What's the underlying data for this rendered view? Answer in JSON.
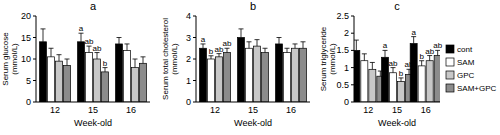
{
  "chart_data": [
    {
      "type": "bar",
      "title": "a",
      "y_label": "Serum glucose (mmol/L)",
      "x_label": "Week-old",
      "categories": [
        "12",
        "15",
        "16"
      ],
      "ylim": [
        0,
        20
      ],
      "yticks": [
        0,
        5,
        10,
        15,
        20
      ],
      "grid": false,
      "series": [
        {
          "color": "#000000",
          "values": [
            14,
            14,
            13.5
          ],
          "errors": [
            3,
            2,
            1.5
          ],
          "letters": [
            null,
            "a",
            null
          ]
        },
        {
          "color": "#ffffff",
          "values": [
            10.5,
            11.5,
            12
          ],
          "errors": [
            2,
            1.5,
            1.5
          ],
          "letters": [
            null,
            "ab",
            null
          ]
        },
        {
          "color": "#c8c8c8",
          "values": [
            9.5,
            10,
            8
          ],
          "errors": [
            1.5,
            1.5,
            2
          ],
          "letters": [
            null,
            "ab",
            null
          ]
        },
        {
          "color": "#8c8c8c",
          "values": [
            8.5,
            7,
            9
          ],
          "errors": [
            1.5,
            1,
            1.5
          ],
          "letters": [
            null,
            "b",
            null
          ]
        }
      ]
    },
    {
      "type": "bar",
      "title": "b",
      "y_label": "Serum total cholesterol (mmol/L)",
      "x_label": "Week-old",
      "categories": [
        "12",
        "15",
        "16"
      ],
      "ylim": [
        0,
        4
      ],
      "yticks": [
        0,
        1,
        2,
        3,
        4
      ],
      "grid": false,
      "series": [
        {
          "color": "#000000",
          "values": [
            2.5,
            3.0,
            2.7
          ],
          "errors": [
            0.2,
            0.4,
            0.3
          ],
          "letters": [
            "a",
            null,
            null
          ]
        },
        {
          "color": "#ffffff",
          "values": [
            2.0,
            2.5,
            2.3
          ],
          "errors": [
            0.15,
            0.3,
            0.2
          ],
          "letters": [
            "b",
            null,
            null
          ]
        },
        {
          "color": "#c8c8c8",
          "values": [
            2.1,
            2.6,
            2.5
          ],
          "errors": [
            0.15,
            0.3,
            0.2
          ],
          "letters": [
            "ab",
            null,
            null
          ]
        },
        {
          "color": "#8c8c8c",
          "values": [
            2.3,
            2.3,
            2.5
          ],
          "errors": [
            0.2,
            0.2,
            0.3
          ],
          "letters": [
            "ab",
            null,
            null
          ]
        }
      ]
    },
    {
      "type": "bar",
      "title": "c",
      "y_label": "Serum triglyceride (mmol/L)",
      "x_label": "Week-old",
      "categories": [
        "12",
        "15",
        "16"
      ],
      "ylim": [
        0,
        2.5
      ],
      "yticks": [
        0,
        0.5,
        1,
        1.5,
        2,
        2.5
      ],
      "grid": false,
      "legend": "right",
      "series": [
        {
          "name": "cont",
          "color": "#000000",
          "values": [
            1.5,
            1.3,
            1.7
          ],
          "errors": [
            0.3,
            0.2,
            0.2
          ],
          "letters": [
            null,
            "a",
            "a"
          ]
        },
        {
          "name": "SAM",
          "color": "#ffffff",
          "values": [
            1.2,
            0.85,
            1.05
          ],
          "errors": [
            0.2,
            0.15,
            0.15
          ],
          "letters": [
            null,
            "ab",
            "b"
          ]
        },
        {
          "name": "GPC",
          "color": "#c8c8c8",
          "values": [
            0.95,
            0.6,
            1.2
          ],
          "errors": [
            0.2,
            0.1,
            0.15
          ],
          "letters": [
            null,
            "b",
            "ab"
          ]
        },
        {
          "name": "SAM+GPC",
          "color": "#8c8c8c",
          "values": [
            0.75,
            0.8,
            1.35
          ],
          "errors": [
            0.15,
            0.15,
            0.15
          ],
          "letters": [
            null,
            "ab",
            "ab"
          ]
        }
      ]
    }
  ]
}
